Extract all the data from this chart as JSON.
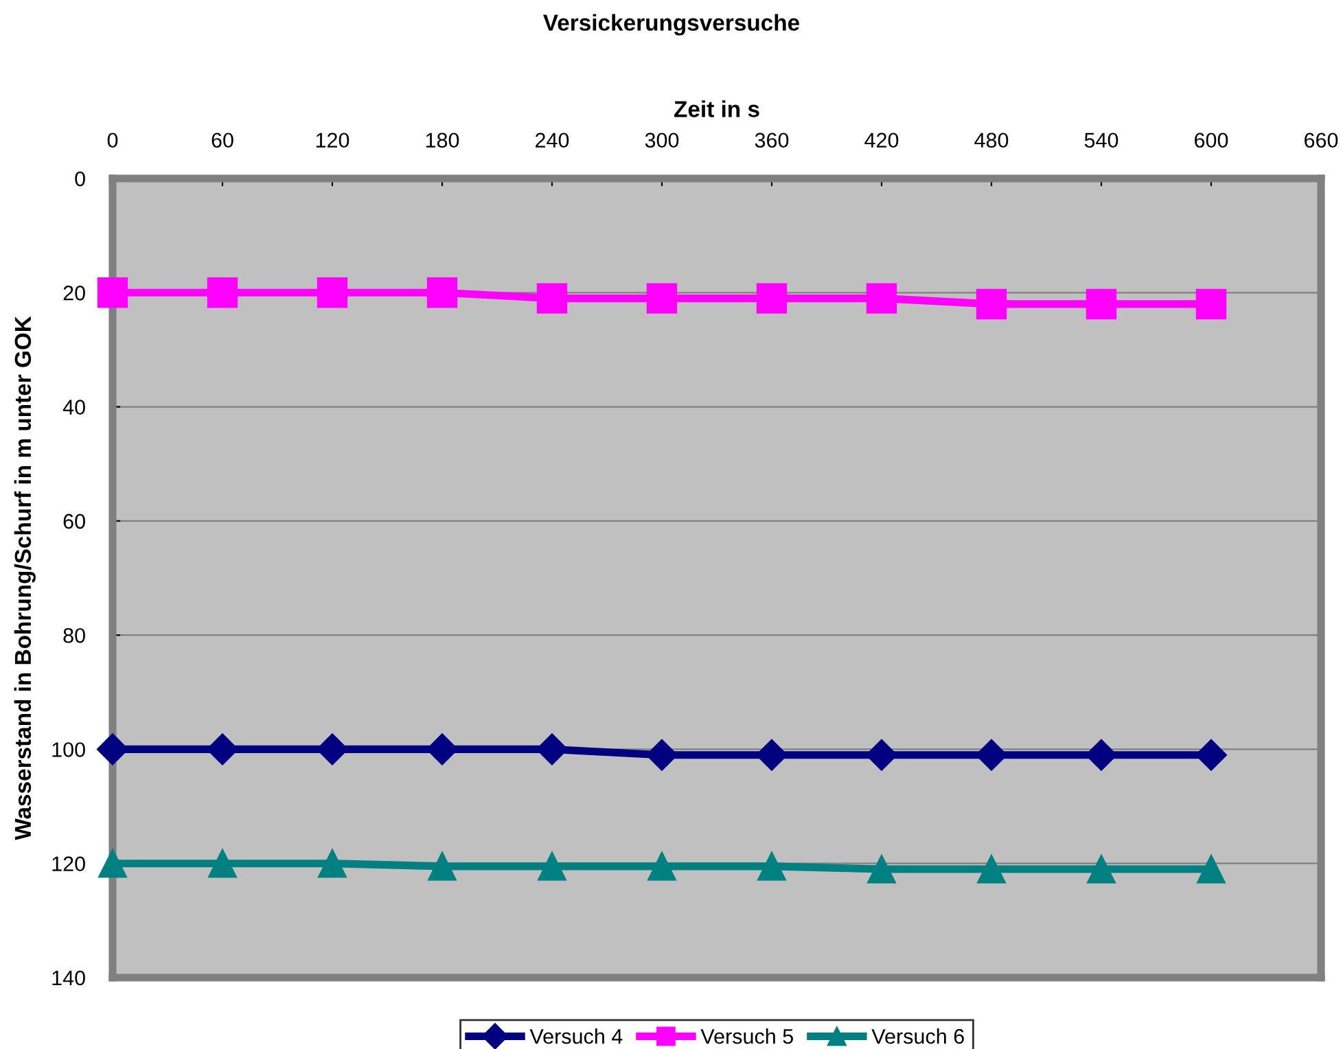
{
  "chart_data": {
    "type": "line",
    "title": "Versickerungsversuche",
    "xlabel": "Zeit in s",
    "ylabel": "Wasserstand in Bohrung/Schurf in m unter GOK",
    "x": [
      0,
      60,
      120,
      180,
      240,
      300,
      360,
      420,
      480,
      540,
      600
    ],
    "series": [
      {
        "name": "Versuch 4",
        "color": "#000080",
        "marker": "diamond",
        "values": [
          100,
          100,
          100,
          100,
          100,
          101,
          101,
          101,
          101,
          101,
          101
        ]
      },
      {
        "name": "Versuch 5",
        "color": "#ff00ff",
        "marker": "square",
        "values": [
          20,
          20,
          20,
          20,
          21,
          21,
          21,
          21,
          22,
          22,
          22
        ]
      },
      {
        "name": "Versuch 6",
        "color": "#008080",
        "marker": "triangle",
        "values": [
          120,
          120,
          120,
          120.5,
          120.5,
          120.5,
          120.5,
          121,
          121,
          121,
          121
        ]
      }
    ],
    "xlim": [
      0,
      660
    ],
    "xticks": [
      0,
      60,
      120,
      180,
      240,
      300,
      360,
      420,
      480,
      540,
      600,
      660
    ],
    "ylim": [
      140,
      0
    ],
    "yticks": [
      0,
      20,
      40,
      60,
      80,
      100,
      120,
      140
    ],
    "grid": "y",
    "legend": "bottom",
    "line_style": "solid"
  }
}
